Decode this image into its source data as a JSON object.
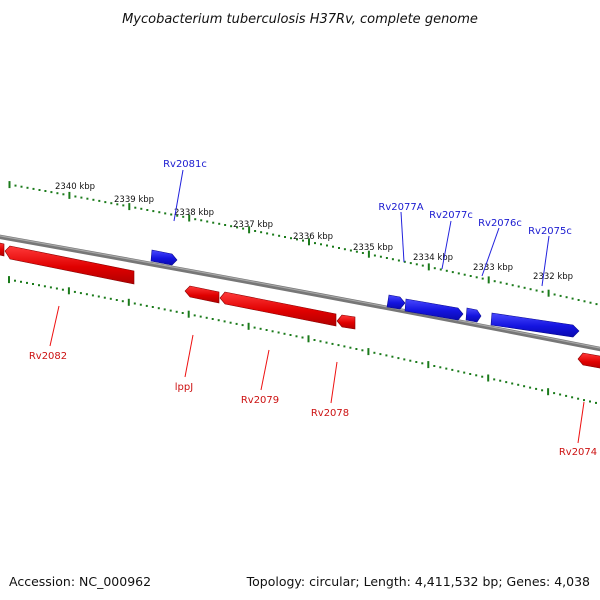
{
  "title": "Mycobacterium tuberculosis H37Rv, complete genome",
  "footer": {
    "accession": "Accession: NC_000962",
    "summary": "Topology: circular; Length: 4,411,532 bp; Genes: 4,038"
  },
  "colors": {
    "forward_strand": "#2222dd",
    "reverse_strand": "#ee1111",
    "backbone": "#777777",
    "ruler": "#1a7a1a",
    "forward_label": "#1a1ad0",
    "reverse_label": "#cc1111"
  },
  "ruler_labels": [
    "2340 kbp",
    "2339 kbp",
    "2338 kbp",
    "2337 kbp",
    "2336 kbp",
    "2335 kbp",
    "2334 kbp",
    "2333 kbp",
    "2332 kbp"
  ],
  "forward_gene_labels": [
    "Rv2081c",
    "Rv2077A",
    "Rv2077c",
    "Rv2076c",
    "Rv2075c"
  ],
  "reverse_gene_labels": [
    "Rv2082",
    "lppJ",
    "Rv2079",
    "Rv2078",
    "Rv2074"
  ]
}
